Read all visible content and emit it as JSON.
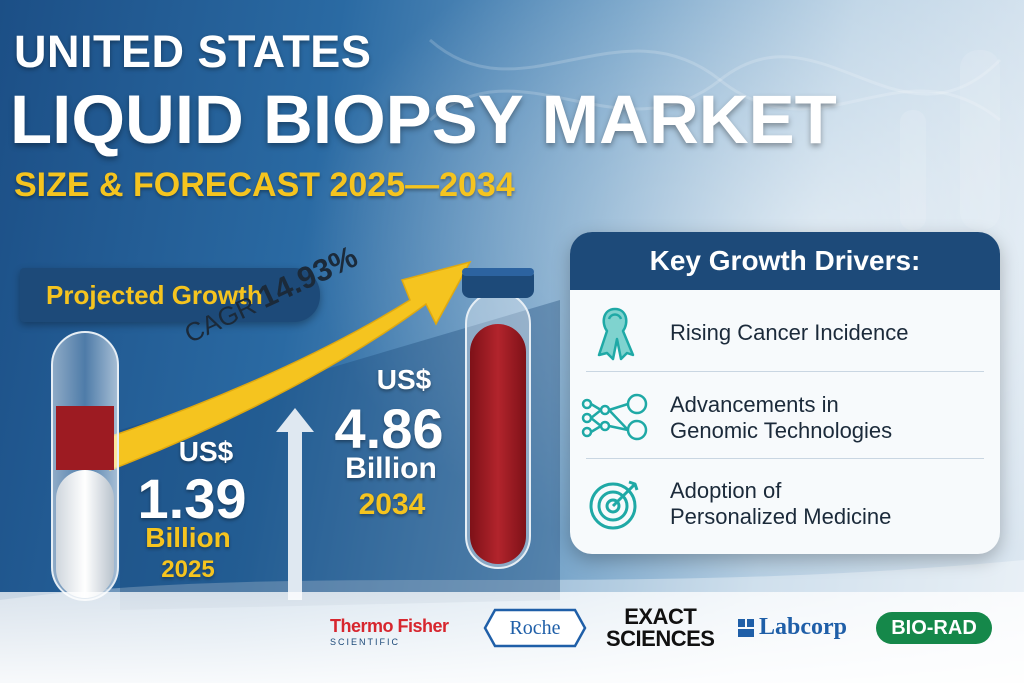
{
  "title": {
    "line1": "UNITED STATES",
    "line2": "LIQUID BIOPSY MARKET",
    "line3": "SIZE & FORECAST 2025—2034"
  },
  "growth": {
    "badge": "Projected Growth",
    "cagr_label": "CAGR",
    "cagr_value": "14.93%"
  },
  "value_2025": {
    "currency": "US$",
    "amount": "1.39",
    "unit": "Billion",
    "year": "2025"
  },
  "value_2034": {
    "currency": "US$",
    "amount": "4.86",
    "unit": "Billion",
    "year": "2034"
  },
  "drivers": {
    "heading": "Key Growth Drivers:",
    "items": [
      {
        "line1": "Rising Cancer Incidence",
        "line2": "",
        "icon": "ribbon-icon"
      },
      {
        "line1": "Advancements in",
        "line2": "Genomic Technologies",
        "icon": "network-icon"
      },
      {
        "line1": "Adoption of",
        "line2": "Personalized Medicine",
        "icon": "target-icon"
      }
    ]
  },
  "logos": {
    "thermo": "Thermo Fisher",
    "thermo_sub": "SCIENTIFIC",
    "roche": "Roche",
    "exact1": "EXACT",
    "exact2": "SCIENCES",
    "labcorp": "Labcorp",
    "biorad": "BIO-RAD"
  },
  "colors": {
    "navy": "#1d4a79",
    "gold": "#f5c41f",
    "teal": "#1fa9a6",
    "blood": "#9d1b22"
  }
}
